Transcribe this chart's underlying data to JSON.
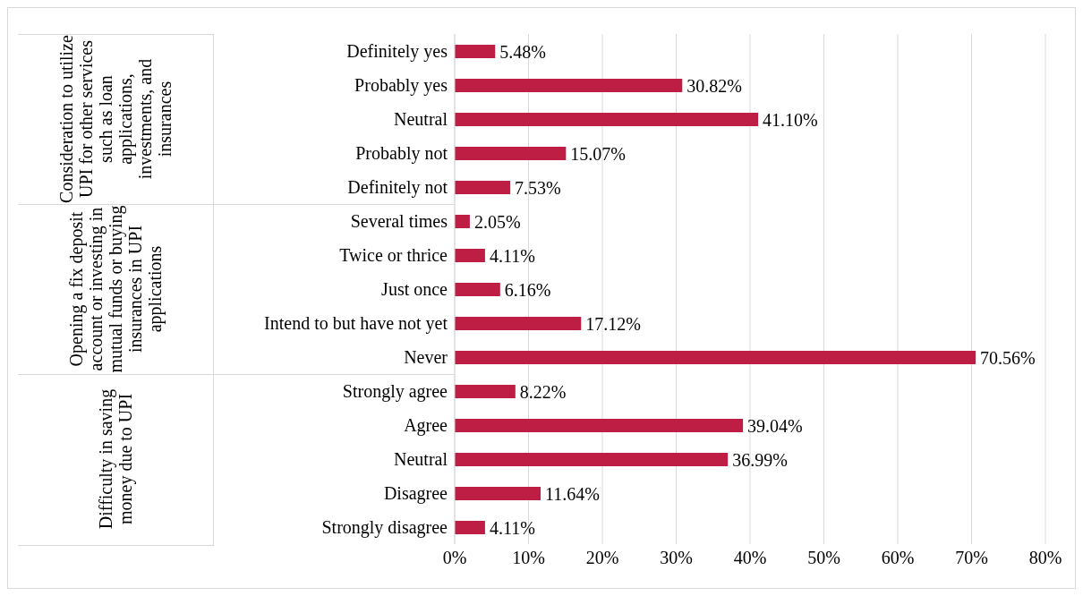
{
  "chart_data": {
    "type": "bar",
    "orientation": "horizontal",
    "categories": [
      "Definitely yes",
      "Probably yes",
      "Neutral",
      "Probably not",
      "Definitely not",
      "Several times",
      "Twice or thrice ",
      "Just once",
      "Intend to but have not yet",
      "Never",
      "Strongly agree",
      "Agree",
      "Neutral",
      "Disagree",
      "Strongly disagree"
    ],
    "values": [
      5.48,
      30.82,
      41.1,
      15.07,
      7.53,
      2.05,
      4.11,
      6.16,
      17.12,
      70.56,
      8.22,
      39.04,
      36.99,
      11.64,
      4.11
    ],
    "value_labels": [
      "5.48%",
      "30.82%",
      "41.10%",
      "15.07%",
      "7.53%",
      "2.05%",
      "4.11%",
      "6.16%",
      "17.12%",
      "70.56%",
      "8.22%",
      "39.04%",
      "36.99%",
      "11.64%",
      "4.11%"
    ],
    "color": "#be1e44",
    "xlim": [
      0,
      80
    ],
    "xticks": [
      {
        "value": 0,
        "label": "0%"
      },
      {
        "value": 10,
        "label": "10%"
      },
      {
        "value": 20,
        "label": "20%"
      },
      {
        "value": 30,
        "label": "30%"
      },
      {
        "value": 40,
        "label": "40%"
      },
      {
        "value": 50,
        "label": "50%"
      },
      {
        "value": 60,
        "label": "60%"
      },
      {
        "value": 70,
        "label": "70%"
      },
      {
        "value": 80,
        "label": "80%"
      }
    ],
    "grid": "x",
    "annotations": [
      "Consideration to utilize UPI for other services such as loan applications, investments, and insurances",
      "Opening a fix deposit account or investing in mutual funds or buying insurances in UPI applications",
      "Difficulty in saving money due to UPI"
    ]
  }
}
